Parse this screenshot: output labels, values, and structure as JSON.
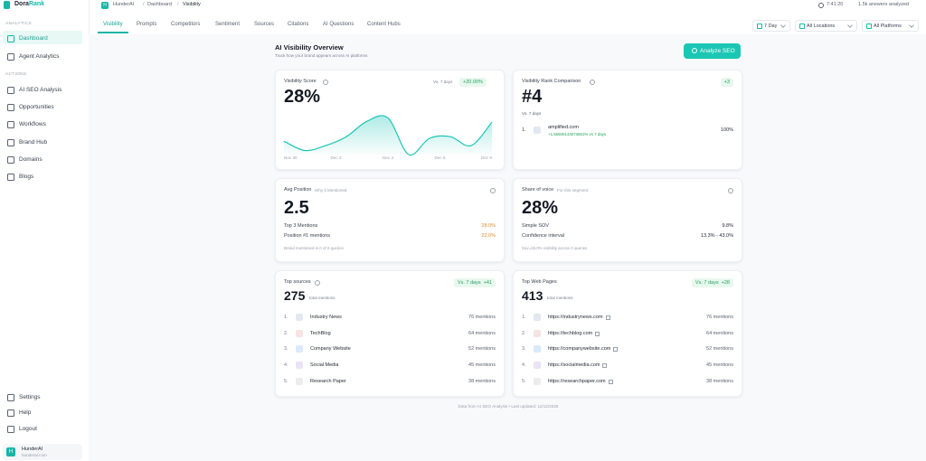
{
  "sidebar": {
    "brand": {
      "part1": "Dora",
      "part2": "Rank"
    },
    "sections": [
      {
        "heading": "ANALYTICS",
        "items": [
          "Dashboard",
          "Agent Analytics"
        ]
      },
      {
        "heading": "ACTIONS",
        "items": [
          "AI SEO Analysis",
          "Opportunities",
          "Workflows",
          "Brand Hub",
          "Domains",
          "Blogs"
        ]
      }
    ],
    "footer_items": [
      "Settings",
      "Help",
      "Logout"
    ],
    "user": {
      "initial": "H",
      "name": "HunderAI",
      "domain": "hunderai.com"
    }
  },
  "topbar": {
    "badge": "H",
    "breadcrumb": [
      "HunderAI",
      "Dashboard",
      "Visibility"
    ],
    "separator": "/",
    "timer": "7:41:20",
    "answers": "1.5k answers analyzed"
  },
  "tabs": [
    "Visibility",
    "Prompts",
    "Competitors",
    "Sentiment",
    "Sources",
    "Citations",
    "AI Questions",
    "Content Hubs"
  ],
  "filters": [
    "7 Day",
    "All Locations",
    "All Platforms"
  ],
  "overview": {
    "title": "AI Visibility Overview",
    "subtitle": "Track how your brand appears across AI platforms",
    "button": "Analyze SEO"
  },
  "visibility_card": {
    "title": "Visibility Score",
    "compare": "Vs. 7 days",
    "change": "+20.00%",
    "value": "28%",
    "chart": {
      "x_labels": [
        "Nov 30",
        "Dec 2",
        "Dec 4",
        "Dec 6",
        "Dec 8"
      ],
      "values": [
        33,
        10,
        22,
        44,
        82,
        90,
        0,
        40,
        44,
        22,
        80
      ]
    }
  },
  "rank_card": {
    "title": "Visibility Rank Comparison",
    "change": "+3",
    "value": "#4",
    "compare": "Vs. 7 days",
    "row": {
      "rank": "1.",
      "domain": "amplified.com",
      "delta": "+1.55500144073651% vs 7 days",
      "share": "100%"
    }
  },
  "position_card": {
    "title": "Avg Position",
    "subtitle": "Why it Mentioned",
    "value": "2.5",
    "rows": [
      {
        "label": "Top 3 Mentions",
        "value": "28.0%"
      },
      {
        "label": "Position #1 mentions",
        "value": "22.0%"
      }
    ],
    "note": "Brand mentioned in 0 of 0 queries"
  },
  "voice_card": {
    "title": "Share of voice",
    "subtitle": "For this segment",
    "value": "28%",
    "rows": [
      {
        "label": "Simple SOV",
        "value": "9.8%"
      },
      {
        "label": "Confidence interval",
        "value": "13.3% - 43.0%"
      }
    ],
    "note": "Sov=28.0% visibility across 0 queries"
  },
  "sources_card": {
    "title": "Top sources",
    "change": "Vs. 7 days  +41",
    "total": "275",
    "total_label": "total mentions",
    "items": [
      {
        "rank": "1.",
        "name": "Industry News",
        "mentions": "76 mentions"
      },
      {
        "rank": "2.",
        "name": "TechBlog",
        "mentions": "64 mentions"
      },
      {
        "rank": "3.",
        "name": "Company Website",
        "mentions": "52 mentions"
      },
      {
        "rank": "4.",
        "name": "Social Media",
        "mentions": "45 mentions"
      },
      {
        "rank": "5.",
        "name": "Research Paper",
        "mentions": "38 mentions"
      }
    ]
  },
  "pages_card": {
    "title": "Top Web Pages",
    "change": "Vs. 7 days  +28",
    "total": "413",
    "total_label": "total mentions",
    "items": [
      {
        "rank": "1.",
        "name": "https://industrynews.com",
        "mentions": "76 mentions"
      },
      {
        "rank": "2.",
        "name": "https://techblog.com",
        "mentions": "64 mentions"
      },
      {
        "rank": "3.",
        "name": "https://companywebsite.com",
        "mentions": "52 mentions"
      },
      {
        "rank": "4.",
        "name": "https://socialmedia.com",
        "mentions": "45 mentions"
      },
      {
        "rank": "5.",
        "name": "https://researchpaper.com",
        "mentions": "38 mentions"
      }
    ]
  },
  "footer": "Data from AI SEO Analysis • Last updated: 12/12/2025"
}
